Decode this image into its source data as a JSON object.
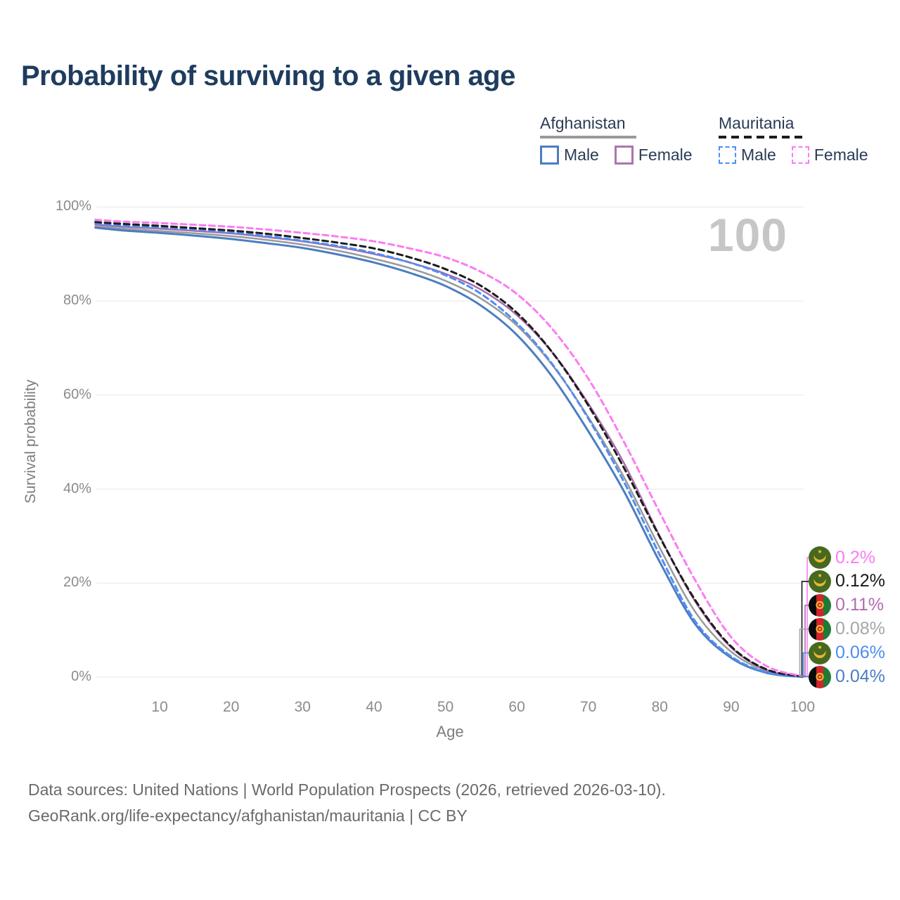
{
  "page": {
    "title": "Probability of surviving to a given age"
  },
  "legend": {
    "groups": [
      {
        "label": "Afghanistan",
        "underline": "solid",
        "underline_color": "#9a9a9a",
        "items": [
          {
            "label": "Male",
            "color": "#4c7dbf",
            "dashed": false
          },
          {
            "label": "Female",
            "color": "#ad74ad",
            "dashed": false
          }
        ]
      },
      {
        "label": "Mauritania",
        "underline": "dashed",
        "underline_color": "#1c1c1c",
        "items": [
          {
            "label": "Male",
            "color": "#4f8df5",
            "dashed": true
          },
          {
            "label": "Female",
            "color": "#fb7cf2",
            "dashed": true
          }
        ]
      }
    ]
  },
  "axes": {
    "y_title": "Survival probability",
    "x_title": "Age",
    "y_ticks": [
      "100%",
      "80%",
      "60%",
      "40%",
      "20%",
      "0%"
    ],
    "y_tick_values": [
      100,
      80,
      60,
      40,
      20,
      0
    ],
    "x_ticks": [
      "10",
      "20",
      "30",
      "40",
      "50",
      "60",
      "70",
      "80",
      "90",
      "100"
    ],
    "x_tick_values": [
      10,
      20,
      30,
      40,
      50,
      60,
      70,
      80,
      90,
      100
    ]
  },
  "watermark": "100",
  "chart_data": {
    "type": "line",
    "title": "Probability of surviving to a given age",
    "xlabel": "Age",
    "ylabel": "Survival probability",
    "xlim": [
      0,
      100
    ],
    "ylim": [
      0,
      100
    ],
    "grid": true,
    "legend_position": "top-right",
    "x": [
      1,
      5,
      10,
      15,
      20,
      25,
      30,
      35,
      40,
      45,
      50,
      55,
      60,
      65,
      70,
      75,
      80,
      85,
      90,
      95,
      100
    ],
    "series": [
      {
        "name": "Afghanistan",
        "country": "Afghanistan",
        "sex": "both",
        "style": "solid",
        "color": "#9a9a9a",
        "width": 2.5,
        "end_label": "0.08%",
        "values": [
          95.9,
          95.4,
          94.9,
          94.4,
          93.8,
          93.0,
          92.0,
          90.7,
          89.0,
          87.0,
          84.3,
          80.5,
          74.8,
          66.3,
          55.3,
          42.5,
          27.5,
          13.8,
          5.4,
          1.3,
          0.08
        ]
      },
      {
        "name": "Afghanistan Male",
        "country": "Afghanistan",
        "sex": "male",
        "style": "solid",
        "color": "#4c7dbf",
        "width": 3,
        "end_label": "0.04%",
        "values": [
          95.6,
          95.0,
          94.5,
          93.9,
          93.2,
          92.3,
          91.3,
          89.9,
          88.2,
          86.0,
          83.2,
          79.0,
          72.8,
          63.8,
          52.3,
          39.5,
          24.5,
          11.2,
          4.1,
          0.9,
          0.04
        ]
      },
      {
        "name": "Afghanistan Female",
        "country": "Afghanistan",
        "sex": "female",
        "style": "solid",
        "color": "#a76cab",
        "width": 2.5,
        "end_label": "0.11%",
        "values": [
          96.3,
          95.8,
          95.4,
          94.9,
          94.4,
          93.6,
          92.7,
          91.5,
          90.0,
          88.2,
          85.8,
          82.4,
          77.0,
          69.0,
          58.2,
          45.5,
          30.0,
          16.0,
          6.3,
          1.5,
          0.11
        ]
      },
      {
        "name": "Mauritania Male",
        "country": "Mauritania",
        "sex": "male",
        "style": "dashed",
        "color": "#4f8df5",
        "width": 3,
        "end_label": "0.06%",
        "values": [
          96.5,
          96.0,
          95.7,
          95.2,
          94.6,
          93.8,
          92.8,
          91.7,
          90.2,
          88.2,
          85.5,
          81.5,
          75.3,
          66.5,
          55.0,
          41.5,
          26.0,
          11.8,
          4.4,
          1.0,
          0.06
        ]
      },
      {
        "name": "Mauritania",
        "country": "Mauritania",
        "sex": "both",
        "style": "dashed",
        "color": "#1c1c1c",
        "width": 3,
        "end_label": "0.12%",
        "values": [
          96.8,
          96.4,
          96.0,
          95.5,
          95.0,
          94.3,
          93.4,
          92.4,
          91.2,
          89.3,
          86.8,
          83.2,
          77.5,
          69.0,
          57.8,
          44.5,
          29.8,
          16.3,
          6.5,
          1.6,
          0.12
        ]
      },
      {
        "name": "Mauritania Female",
        "country": "Mauritania",
        "sex": "female",
        "style": "dashed",
        "color": "#fb7cf2",
        "width": 3,
        "end_label": "0.2%",
        "values": [
          97.3,
          96.9,
          96.6,
          96.2,
          95.8,
          95.2,
          94.5,
          93.7,
          92.7,
          91.2,
          89.3,
          86.2,
          81.5,
          74.0,
          63.5,
          50.0,
          35.0,
          20.5,
          8.5,
          2.3,
          0.2
        ]
      }
    ]
  },
  "end_labels": [
    {
      "flag": "mauritania",
      "text": "0.2%",
      "color": "#fb7cf2"
    },
    {
      "flag": "mauritania",
      "text": "0.12%",
      "color": "#171717"
    },
    {
      "flag": "afghanistan",
      "text": "0.11%",
      "color": "#b16bb1"
    },
    {
      "flag": "afghanistan",
      "text": "0.08%",
      "color": "#a6a6a6"
    },
    {
      "flag": "mauritania",
      "text": "0.06%",
      "color": "#4d8cf0"
    },
    {
      "flag": "afghanistan",
      "text": "0.04%",
      "color": "#4c7dbf"
    }
  ],
  "footer": {
    "line1": "Data sources: United Nations | World Population Prospects (2026, retrieved 2026-03-10).",
    "line2": "GeoRank.org/life-expectancy/afghanistan/mauritania | CC BY"
  }
}
